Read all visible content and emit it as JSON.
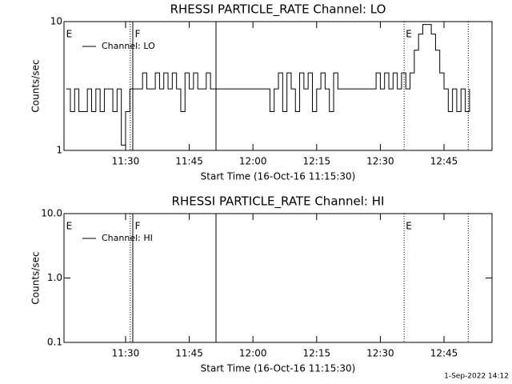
{
  "chart_data": [
    {
      "type": "line",
      "title": "RHESSI PARTICLE_RATE Channel: LO",
      "xlabel": "Start Time (16-Oct-16 11:15:30)",
      "ylabel": "Counts/sec",
      "log_y": true,
      "ylim": [
        1,
        10
      ],
      "yticks": [
        10,
        1
      ],
      "xlim": [
        675.5,
        776.3
      ],
      "xticks": [
        {
          "value": 690,
          "label": "11:30"
        },
        {
          "value": 705,
          "label": "11:45"
        },
        {
          "value": 720,
          "label": "12:00"
        },
        {
          "value": 735,
          "label": "12:15"
        },
        {
          "value": 750,
          "label": "12:30"
        },
        {
          "value": 765,
          "label": "12:45"
        }
      ],
      "legend": "upper left",
      "vlines": [
        {
          "x": 691.1,
          "style": "dotted"
        },
        {
          "x": 691.7,
          "style": "solid"
        },
        {
          "x": 711.3,
          "style": "solid"
        },
        {
          "x": 755.6,
          "style": "dotted"
        },
        {
          "x": 770.7,
          "style": "dotted"
        }
      ],
      "annotations": [
        {
          "x": 676.0,
          "text": "E"
        },
        {
          "x": 692.2,
          "text": "F"
        },
        {
          "x": 756.0,
          "text": "E"
        }
      ],
      "series": [
        {
          "name": "Channel: LO",
          "color": "#000000",
          "x": [
            676,
            677,
            678,
            679,
            680,
            681,
            682,
            683,
            684,
            685,
            686,
            687,
            688,
            689,
            690,
            691,
            692,
            693,
            694,
            695,
            696,
            697,
            698,
            699,
            700,
            701,
            702,
            703,
            704,
            705,
            706,
            707,
            708,
            709,
            710,
            711,
            712,
            713,
            714,
            715,
            716,
            717,
            718,
            719,
            720,
            721,
            722,
            723,
            724,
            725,
            726,
            727,
            728,
            729,
            730,
            731,
            732,
            733,
            734,
            735,
            736,
            737,
            738,
            739,
            740,
            741,
            742,
            743,
            744,
            745,
            746,
            747,
            748,
            749,
            750,
            751,
            752,
            753,
            754,
            755,
            756,
            757,
            758,
            759,
            760,
            761,
            762,
            763,
            764,
            765,
            766,
            767,
            768,
            769,
            770,
            771
          ],
          "values": [
            3,
            2,
            3,
            2,
            2,
            3,
            2,
            3,
            2,
            3,
            3,
            2,
            3,
            1.1,
            2,
            3,
            3,
            3,
            4,
            3,
            3,
            4,
            3,
            4,
            3,
            4,
            3,
            2,
            4,
            3,
            4,
            3,
            3,
            4,
            3,
            3,
            3,
            3,
            3,
            3,
            3,
            3,
            3,
            3,
            3,
            3,
            3,
            3,
            2,
            3,
            4,
            2,
            4,
            3,
            2,
            4,
            3,
            4,
            2,
            3,
            4,
            3,
            2,
            4,
            3,
            3,
            3,
            3,
            3,
            3,
            3,
            3,
            3,
            4,
            3,
            4,
            3,
            4,
            3,
            4,
            3,
            4,
            6,
            8,
            9.5,
            9.5,
            8,
            6,
            4,
            3,
            2,
            3,
            2,
            3,
            2,
            3
          ]
        }
      ]
    },
    {
      "type": "line",
      "title": "RHESSI PARTICLE_RATE Channel: HI",
      "xlabel": "Start Time (16-Oct-16 11:15:30)",
      "ylabel": "Counts/sec",
      "log_y": true,
      "ylim": [
        0.1,
        10
      ],
      "yticks": [
        {
          "value": 10,
          "label": "10.0"
        },
        {
          "value": 1,
          "label": "1.0"
        },
        {
          "value": 0.1,
          "label": "0.1"
        }
      ],
      "xlim": [
        675.5,
        776.3
      ],
      "xticks": [
        {
          "value": 690,
          "label": "11:30"
        },
        {
          "value": 705,
          "label": "11:45"
        },
        {
          "value": 720,
          "label": "12:00"
        },
        {
          "value": 735,
          "label": "12:15"
        },
        {
          "value": 750,
          "label": "12:30"
        },
        {
          "value": 765,
          "label": "12:45"
        }
      ],
      "legend": "upper left",
      "vlines": [
        {
          "x": 691.1,
          "style": "dotted"
        },
        {
          "x": 691.7,
          "style": "solid"
        },
        {
          "x": 711.3,
          "style": "solid"
        },
        {
          "x": 755.6,
          "style": "dotted"
        },
        {
          "x": 770.7,
          "style": "dotted"
        }
      ],
      "annotations": [
        {
          "x": 676.0,
          "text": "E"
        },
        {
          "x": 692.2,
          "text": "F"
        },
        {
          "x": 756.0,
          "text": "E"
        }
      ],
      "series": [
        {
          "name": "Channel: HI",
          "color": "#000000"
        }
      ]
    }
  ],
  "footer": "1-Sep-2022 14:12"
}
